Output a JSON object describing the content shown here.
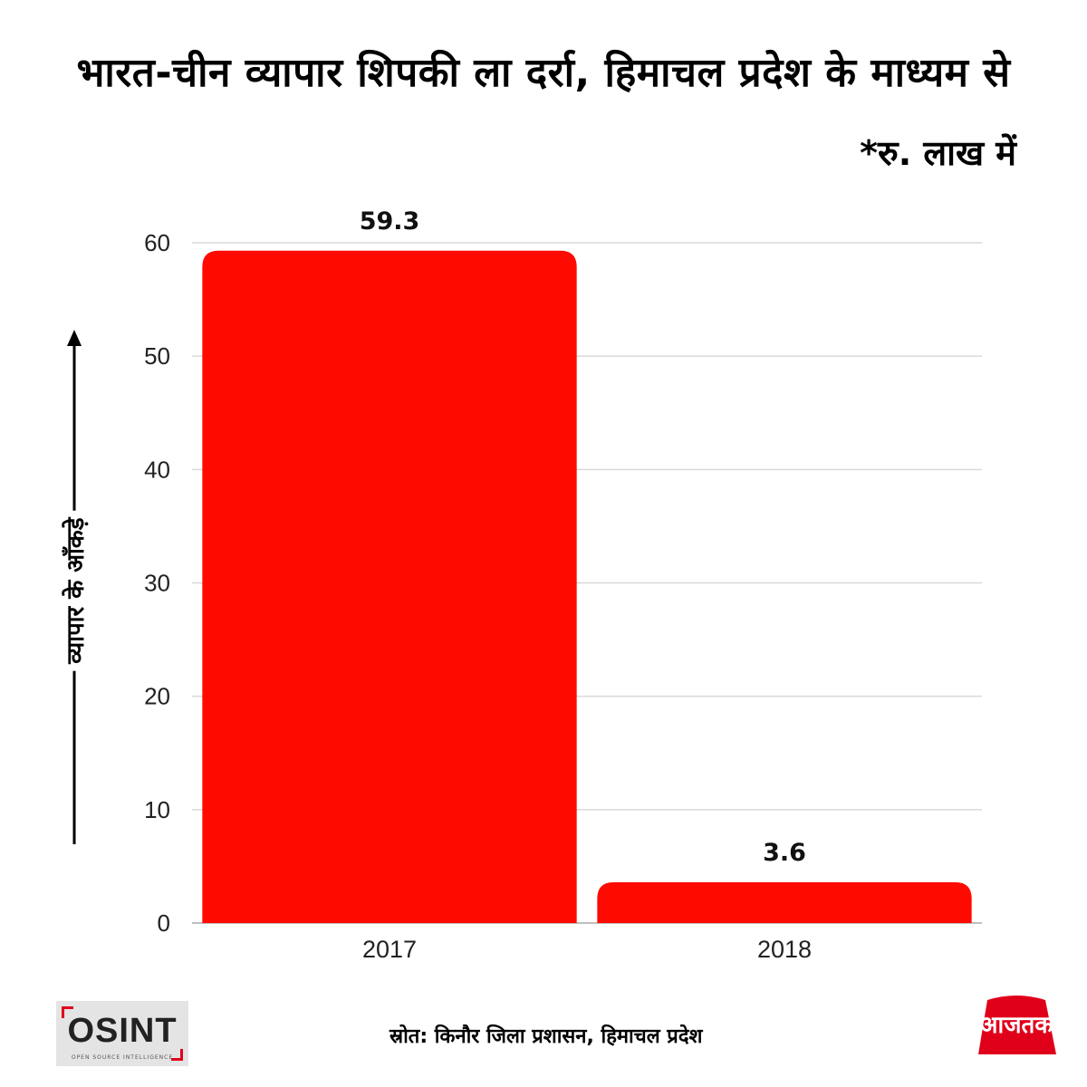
{
  "title": "भारत-चीन व्यापार शिपकी ला दर्रा, हिमाचल प्रदेश के माध्यम से",
  "unit_note": "*रु. लाख में",
  "source_text": "स्रोत: किनौर जिला प्रशासन, हिमाचल प्रदेश",
  "logos": {
    "left": {
      "text": "OSINT",
      "sub": "OPEN SOURCE INTELLIGENCE"
    },
    "right": {
      "text": "आजतक"
    }
  },
  "colors": {
    "bar": "#ff0a00",
    "grid": "#d9d9d9",
    "axis": "#bfbfbf",
    "brand_red": "#e0001a"
  },
  "chart_data": {
    "type": "bar",
    "categories": [
      "2017",
      "2018"
    ],
    "values": [
      59.3,
      3.6
    ],
    "data_labels": [
      "59.3",
      "3.6"
    ],
    "ylabel": "व्यापार के आँकड़े",
    "ylim": [
      0,
      60
    ],
    "yticks": [
      0,
      10,
      20,
      30,
      40,
      50,
      60
    ],
    "grid": true,
    "legend": "none"
  }
}
